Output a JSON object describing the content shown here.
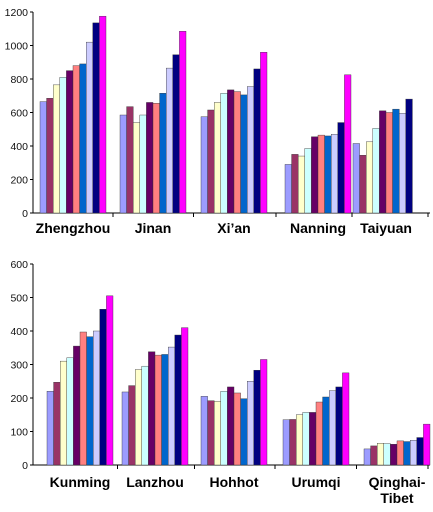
{
  "series_colors": [
    "#9c9cff",
    "#993366",
    "#ffffcc",
    "#ccffff",
    "#660066",
    "#ff8080",
    "#0066cc",
    "#ccccff",
    "#000080",
    "#ff00ff"
  ],
  "chart_data": [
    {
      "type": "bar",
      "categories": [
        "Zhengzhou",
        "Jinan",
        "Xi'an",
        "Nanning",
        "Taiyuan"
      ],
      "category_labels": [
        [
          "Zhengzhou"
        ],
        [
          "Jinan"
        ],
        [
          "Xi’an"
        ],
        [
          "Nanning"
        ],
        [
          "Taiyuan"
        ]
      ],
      "ylim": [
        0,
        1200
      ],
      "yticks": [
        0,
        200,
        400,
        600,
        800,
        1000,
        1200
      ],
      "grid": false,
      "series": [
        {
          "values": [
            665,
            585,
            575,
            290,
            415
          ]
        },
        {
          "values": [
            685,
            635,
            615,
            350,
            345
          ]
        },
        {
          "values": [
            765,
            540,
            660,
            340,
            425
          ]
        },
        {
          "values": [
            810,
            585,
            715,
            385,
            505
          ]
        },
        {
          "values": [
            850,
            660,
            735,
            455,
            610
          ]
        },
        {
          "values": [
            880,
            655,
            725,
            465,
            600
          ]
        },
        {
          "values": [
            890,
            715,
            705,
            460,
            620
          ]
        },
        {
          "values": [
            1020,
            865,
            755,
            470,
            595
          ]
        },
        {
          "values": [
            1135,
            945,
            860,
            540,
            680
          ]
        },
        {
          "values": [
            1175,
            1085,
            960,
            825,
            null
          ]
        }
      ]
    },
    {
      "type": "bar",
      "categories": [
        "Kunming",
        "Lanzhou",
        "Hohhot",
        "Urumqi",
        "Qinghai-Tibet"
      ],
      "category_labels": [
        [
          "Kunming"
        ],
        [
          "Lanzhou"
        ],
        [
          "Hohhot"
        ],
        [
          "Urumqi"
        ],
        [
          "Qinghai-",
          "Tibet"
        ]
      ],
      "ylim": [
        0,
        600
      ],
      "yticks": [
        0,
        100,
        200,
        300,
        400,
        500,
        600
      ],
      "grid": false,
      "series": [
        {
          "values": [
            220,
            218,
            205,
            135,
            48
          ]
        },
        {
          "values": [
            247,
            237,
            192,
            136,
            57
          ]
        },
        {
          "values": [
            310,
            285,
            190,
            150,
            65
          ]
        },
        {
          "values": [
            320,
            295,
            220,
            157,
            64
          ]
        },
        {
          "values": [
            355,
            338,
            233,
            157,
            62
          ]
        },
        {
          "values": [
            397,
            328,
            215,
            188,
            72
          ]
        },
        {
          "values": [
            383,
            330,
            198,
            203,
            70
          ]
        },
        {
          "values": [
            400,
            352,
            250,
            222,
            74
          ]
        },
        {
          "values": [
            465,
            388,
            283,
            233,
            82
          ]
        },
        {
          "values": [
            505,
            410,
            315,
            275,
            122
          ]
        }
      ]
    }
  ]
}
